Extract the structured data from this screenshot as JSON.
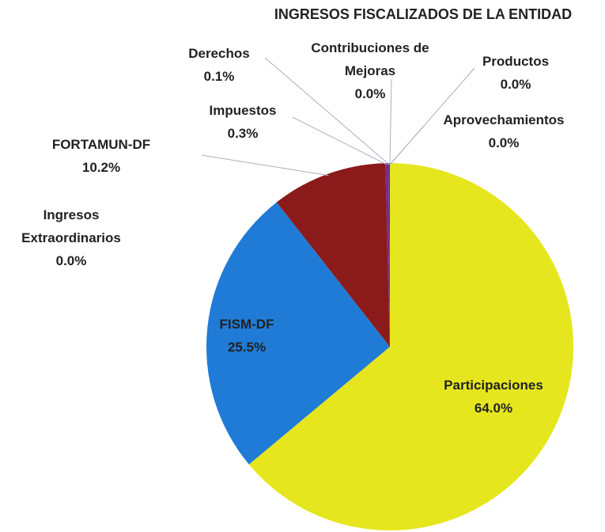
{
  "chart_data": {
    "type": "pie",
    "title": "INGRESOS FISCALIZADOS DE LA ENTIDAD",
    "categories": [
      "Participaciones",
      "FISM-DF",
      "Ingresos Extraordinarios",
      "FORTAMUN-DF",
      "Impuestos",
      "Derechos",
      "Contribuciones de Mejoras",
      "Productos",
      "Aprovechamientos"
    ],
    "values": [
      64.0,
      25.5,
      0.0,
      10.2,
      0.3,
      0.1,
      0.0,
      0.0,
      0.0
    ],
    "value_labels": [
      "64.0%",
      "25.5%",
      "0.0%",
      "10.2%",
      "0.3%",
      "0.1%",
      "0.0%",
      "0.0%",
      "0.0%"
    ],
    "colors": [
      "#e6e61e",
      "#1f7bd6",
      "#17913b",
      "#8b1a1a",
      "#7a2a8c",
      "#3a3a9a",
      "#2a7a7a",
      "#555555",
      "#333333"
    ]
  }
}
